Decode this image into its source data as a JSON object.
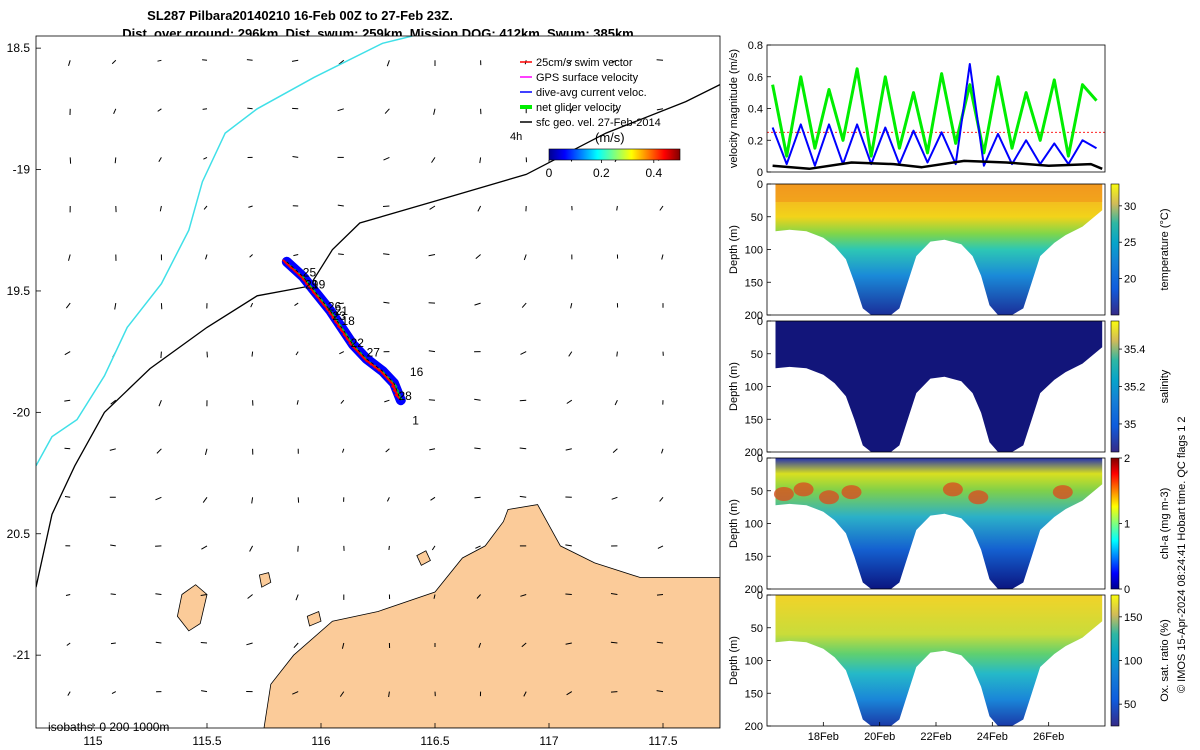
{
  "title_line1": "SL287 Pilbara20140210 16-Feb 00Z to 27-Feb 23Z.",
  "title_line2": "Dist. over ground: 296km. Dist. swum: 259km. Mission DOG: 412km. Swum: 385km",
  "credit": "© IMOS 15-Apr-2024 08:24:41 Hobart time. QC flags 1  2",
  "colors": {
    "land": "#fbcb99",
    "coast_line": "#000000",
    "isobath_200": "#40e0e8",
    "isobath_1000": "#000000",
    "swim": "#ff0000",
    "gps": "#ff00ff",
    "dive_avg": "#0000ff",
    "net": "#00ee00",
    "sfc_geo": "#000000"
  },
  "chart_data": [
    {
      "type": "map",
      "xlim": [
        114.75,
        117.75
      ],
      "ylim": [
        -21.3,
        -18.45
      ],
      "xticks": [
        {
          "v": 115,
          "label": "115"
        },
        {
          "v": 115.5,
          "label": "115.5"
        },
        {
          "v": 116,
          "label": "116"
        },
        {
          "v": 116.5,
          "label": "116.5"
        },
        {
          "v": 117,
          "label": "117"
        },
        {
          "v": 117.5,
          "label": "117.5"
        }
      ],
      "yticks": [
        {
          "v": -18.5,
          "label": "18.5"
        },
        {
          "v": -19,
          "label": "-19"
        },
        {
          "v": -19.5,
          "label": "19.5"
        },
        {
          "v": -20,
          "label": "-20"
        },
        {
          "v": -20.5,
          "label": "20.5"
        },
        {
          "v": -21,
          "label": "-21"
        }
      ],
      "legend": [
        {
          "label": "25cm/s swim vector",
          "color": "#ff0000"
        },
        {
          "label": "GPS surface velocity",
          "color": "#ff00ff"
        },
        {
          "label": "dive-avg current veloc.",
          "color": "#0000ff"
        },
        {
          "label": "net glider velocity",
          "color": "#00ee00"
        },
        {
          "label": "sfc geo. vel. 27-Feb-2014",
          "color": "#000000"
        }
      ],
      "legend_extra": "4h",
      "colorbar": {
        "label": "(m/s)",
        "ticks": [
          "0",
          "0.2",
          "0.4"
        ],
        "range": [
          0,
          0.5
        ]
      },
      "isobath_text": "isobaths: 0   200  1000m",
      "day_labels": [
        {
          "label": "25",
          "lon": 115.92,
          "lat": -19.44
        },
        {
          "label": "29",
          "lon": 115.93,
          "lat": -19.49
        },
        {
          "label": "19",
          "lon": 115.96,
          "lat": -19.49
        },
        {
          "label": "26",
          "lon": 116.03,
          "lat": -19.58
        },
        {
          "label": "21",
          "lon": 116.06,
          "lat": -19.6
        },
        {
          "label": "23",
          "lon": 116.05,
          "lat": -19.62
        },
        {
          "label": "18",
          "lon": 116.09,
          "lat": -19.64
        },
        {
          "label": "22",
          "lon": 116.13,
          "lat": -19.73
        },
        {
          "label": "27",
          "lon": 116.2,
          "lat": -19.77
        },
        {
          "label": "16",
          "lon": 116.39,
          "lat": -19.85
        },
        {
          "label": "28",
          "lon": 116.34,
          "lat": -19.95
        },
        {
          "label": "1",
          "lon": 116.4,
          "lat": -20.05
        }
      ],
      "track": [
        [
          115.85,
          -19.38
        ],
        [
          115.92,
          -19.44
        ],
        [
          115.98,
          -19.51
        ],
        [
          116.04,
          -19.58
        ],
        [
          116.09,
          -19.65
        ],
        [
          116.14,
          -19.72
        ],
        [
          116.2,
          -19.78
        ],
        [
          116.27,
          -19.83
        ],
        [
          116.32,
          -19.88
        ],
        [
          116.35,
          -19.95
        ]
      ],
      "isobath_200": [
        [
          114.75,
          -20.22
        ],
        [
          114.82,
          -20.1
        ],
        [
          114.93,
          -20.03
        ],
        [
          115.05,
          -19.85
        ],
        [
          115.15,
          -19.65
        ],
        [
          115.3,
          -19.47
        ],
        [
          115.42,
          -19.25
        ],
        [
          115.48,
          -19.05
        ],
        [
          115.58,
          -18.85
        ],
        [
          115.72,
          -18.75
        ],
        [
          115.97,
          -18.62
        ],
        [
          116.27,
          -18.48
        ],
        [
          116.4,
          -18.45
        ]
      ],
      "isobath_1000": [
        [
          114.75,
          -20.72
        ],
        [
          114.82,
          -20.42
        ],
        [
          114.92,
          -20.22
        ],
        [
          115.05,
          -20.0
        ],
        [
          115.25,
          -19.82
        ],
        [
          115.5,
          -19.65
        ],
        [
          115.72,
          -19.52
        ],
        [
          115.95,
          -19.48
        ],
        [
          116.05,
          -19.33
        ],
        [
          116.17,
          -19.22
        ],
        [
          116.5,
          -19.13
        ],
        [
          116.9,
          -19.02
        ],
        [
          117.25,
          -18.85
        ],
        [
          117.6,
          -18.72
        ],
        [
          117.75,
          -18.65
        ]
      ],
      "land_poly": [
        [
          115.75,
          -21.3
        ],
        [
          115.78,
          -21.12
        ],
        [
          115.88,
          -21.0
        ],
        [
          116.05,
          -20.86
        ],
        [
          116.25,
          -20.82
        ],
        [
          116.5,
          -20.74
        ],
        [
          116.62,
          -20.6
        ],
        [
          116.72,
          -20.55
        ],
        [
          116.8,
          -20.45
        ],
        [
          116.82,
          -20.4
        ],
        [
          116.95,
          -20.38
        ],
        [
          117.05,
          -20.55
        ],
        [
          117.2,
          -20.62
        ],
        [
          117.4,
          -20.68
        ],
        [
          117.75,
          -20.68
        ],
        [
          117.75,
          -21.3
        ]
      ],
      "islands": [
        [
          [
            115.39,
            -20.75
          ],
          [
            115.45,
            -20.71
          ],
          [
            115.5,
            -20.75
          ],
          [
            115.47,
            -20.87
          ],
          [
            115.42,
            -20.9
          ],
          [
            115.37,
            -20.84
          ]
        ],
        [
          [
            115.73,
            -20.67
          ],
          [
            115.77,
            -20.66
          ],
          [
            115.78,
            -20.7
          ],
          [
            115.74,
            -20.72
          ]
        ],
        [
          [
            115.94,
            -20.84
          ],
          [
            115.99,
            -20.82
          ],
          [
            116.0,
            -20.86
          ],
          [
            115.95,
            -20.88
          ]
        ],
        [
          [
            116.42,
            -20.59
          ],
          [
            116.46,
            -20.57
          ],
          [
            116.48,
            -20.61
          ],
          [
            116.44,
            -20.63
          ]
        ]
      ]
    },
    {
      "type": "line",
      "ylabel": "velocity magnitude (m/s)",
      "ylim": [
        0,
        0.8
      ],
      "yticks": [
        {
          "v": 0,
          "label": "0"
        },
        {
          "v": 0.2,
          "label": "0.2"
        },
        {
          "v": 0.4,
          "label": "0.4"
        },
        {
          "v": 0.6,
          "label": "0.6"
        },
        {
          "v": 0.8,
          "label": "0.8"
        }
      ],
      "xlim": [
        16,
        28
      ],
      "series": [
        {
          "color": "#00ee00",
          "x": [
            16.2,
            16.7,
            17.2,
            17.7,
            18.2,
            18.7,
            19.2,
            19.7,
            20.2,
            20.7,
            21.2,
            21.7,
            22.2,
            22.7,
            23.2,
            23.7,
            24.2,
            24.7,
            25.2,
            25.7,
            26.2,
            26.7,
            27.2,
            27.7
          ],
          "y": [
            0.55,
            0.1,
            0.6,
            0.15,
            0.52,
            0.2,
            0.65,
            0.1,
            0.6,
            0.15,
            0.5,
            0.12,
            0.62,
            0.18,
            0.55,
            0.12,
            0.6,
            0.15,
            0.5,
            0.2,
            0.58,
            0.1,
            0.55,
            0.45
          ]
        },
        {
          "color": "#0000ff",
          "x": [
            16.2,
            16.7,
            17.2,
            17.7,
            18.2,
            18.7,
            19.2,
            19.7,
            20.2,
            20.7,
            21.2,
            21.7,
            22.2,
            22.7,
            23.2,
            23.7,
            24.2,
            24.7,
            25.2,
            25.7,
            26.2,
            26.7,
            27.2,
            27.7
          ],
          "y": [
            0.28,
            0.05,
            0.3,
            0.04,
            0.3,
            0.05,
            0.3,
            0.05,
            0.28,
            0.05,
            0.26,
            0.06,
            0.25,
            0.05,
            0.68,
            0.04,
            0.24,
            0.05,
            0.2,
            0.05,
            0.18,
            0.05,
            0.2,
            0.15
          ]
        },
        {
          "color": "#000000",
          "x": [
            16.2,
            17.5,
            19,
            20.5,
            21.5,
            23,
            24.5,
            26,
            27.5,
            27.9
          ],
          "y": [
            0.04,
            0.02,
            0.06,
            0.05,
            0.03,
            0.07,
            0.06,
            0.04,
            0.05,
            0.02
          ]
        }
      ],
      "ref_line": 0.25
    },
    {
      "type": "heatmap",
      "ylabel": "Depth (m)",
      "clabel": "temperature (°C)",
      "yticks": [
        "0",
        "50",
        "100",
        "150",
        "200"
      ],
      "cticks": [
        {
          "v": 20,
          "label": "20"
        },
        {
          "v": 25,
          "label": "25"
        },
        {
          "v": 30,
          "label": "30"
        }
      ],
      "crange": [
        15,
        33
      ]
    },
    {
      "type": "heatmap",
      "ylabel": "Depth (m)",
      "clabel": "salinity",
      "yticks": [
        "0",
        "50",
        "100",
        "150",
        "200"
      ],
      "cticks": [
        {
          "v": 35,
          "label": "35"
        },
        {
          "v": 35.2,
          "label": "35.2"
        },
        {
          "v": 35.4,
          "label": "35.4"
        }
      ],
      "crange": [
        34.85,
        35.55
      ]
    },
    {
      "type": "heatmap",
      "ylabel": "Depth (m)",
      "clabel": "chl-a (mg m-3)",
      "yticks": [
        "0",
        "50",
        "100",
        "150",
        "200"
      ],
      "cticks": [
        {
          "v": 0,
          "label": "0"
        },
        {
          "v": 1,
          "label": "1"
        },
        {
          "v": 2,
          "label": "2"
        }
      ],
      "crange": [
        0,
        2
      ]
    },
    {
      "type": "heatmap",
      "ylabel": "Depth (m)",
      "clabel": "Ox. sat. ratio (%)",
      "yticks": [
        "0",
        "50",
        "100",
        "150",
        "200"
      ],
      "cticks": [
        {
          "v": 50,
          "label": "50"
        },
        {
          "v": 100,
          "label": "100"
        },
        {
          "v": 150,
          "label": "150"
        }
      ],
      "crange": [
        25,
        175
      ],
      "xticks": [
        {
          "v": 18,
          "label": "18Feb"
        },
        {
          "v": 20,
          "label": "20Feb"
        },
        {
          "v": 22,
          "label": "22Feb"
        },
        {
          "v": 24,
          "label": "24Feb"
        },
        {
          "v": 26,
          "label": "26Feb"
        }
      ]
    }
  ]
}
